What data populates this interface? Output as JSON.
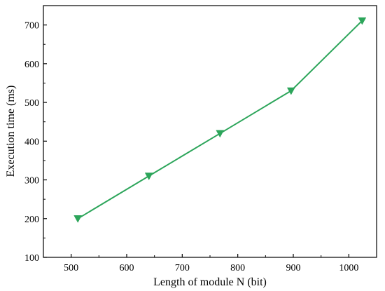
{
  "chart_data": {
    "type": "line",
    "xlabel": "Length of module N (bit)",
    "ylabel": "Execution time (ms)",
    "x": [
      512,
      640,
      768,
      896,
      1024
    ],
    "series": [
      {
        "values": [
          200,
          310,
          420,
          530,
          711
        ]
      }
    ],
    "xlim": [
      450,
      1050
    ],
    "ylim": [
      100,
      750
    ],
    "xticks": [
      500,
      600,
      700,
      800,
      900,
      1000
    ],
    "yticks": [
      100,
      200,
      300,
      400,
      500,
      600,
      700
    ],
    "marker": "down-triangle",
    "grid": false,
    "colors": {
      "series": "#2ca55a",
      "axis": "#000000"
    }
  }
}
